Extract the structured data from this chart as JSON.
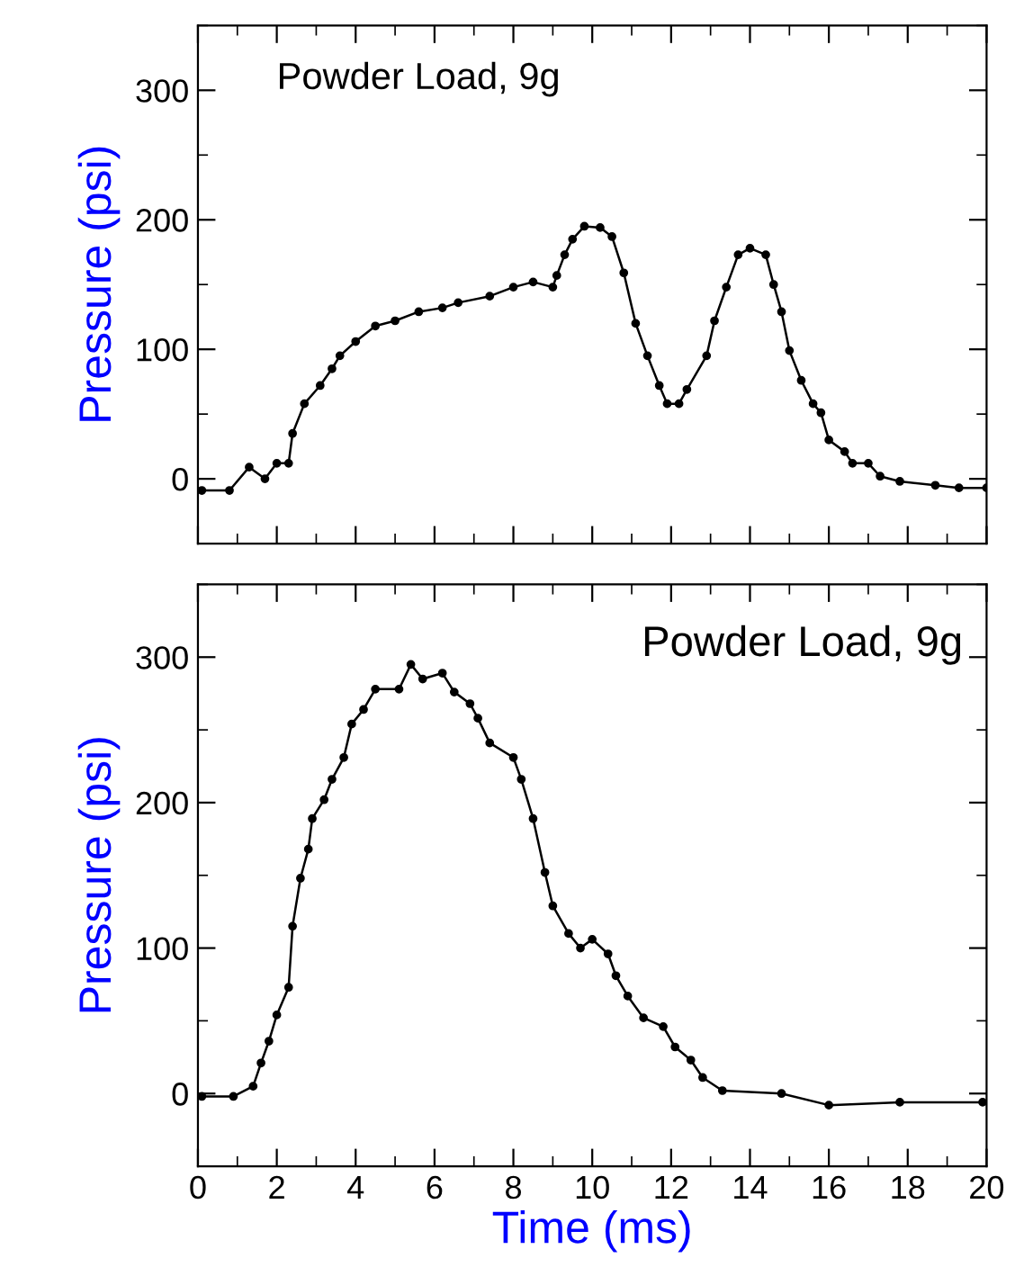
{
  "chart_data": [
    {
      "type": "line",
      "ylabel": "Pressure (psi)",
      "annotations": [
        "Powder Load, 9g"
      ],
      "xlim": [
        0,
        20
      ],
      "xticks": [
        0,
        2,
        4,
        6,
        8,
        10,
        12,
        14,
        16,
        18,
        20
      ],
      "ylim": [
        -50,
        350
      ],
      "yticks": [
        0,
        100,
        200,
        300
      ],
      "tick_labels": "y",
      "marker": "circle",
      "line_style": "solid",
      "x": [
        0.1,
        0.8,
        1.3,
        1.7,
        2.0,
        2.3,
        2.4,
        2.7,
        3.1,
        3.4,
        3.6,
        4.0,
        4.5,
        5.0,
        5.6,
        6.2,
        6.6,
        7.4,
        8.0,
        8.5,
        9.0,
        9.1,
        9.3,
        9.5,
        9.8,
        10.2,
        10.5,
        10.8,
        11.1,
        11.4,
        11.7,
        11.9,
        12.2,
        12.4,
        12.9,
        13.1,
        13.4,
        13.7,
        14.0,
        14.4,
        14.6,
        14.8,
        15.0,
        15.3,
        15.6,
        15.8,
        16.0,
        16.4,
        16.6,
        17.0,
        17.3,
        17.8,
        18.7,
        19.3,
        20.0
      ],
      "series": [
        {
          "color": "#000000",
          "values": [
            -9,
            -9,
            9,
            0,
            12,
            12,
            35,
            58,
            72,
            85,
            95,
            106,
            118,
            122,
            129,
            132,
            136,
            141,
            148,
            152,
            148,
            157,
            173,
            185,
            195,
            194,
            187,
            159,
            120,
            95,
            72,
            58,
            58,
            69,
            95,
            122,
            148,
            173,
            178,
            173,
            150,
            129,
            99,
            76,
            58,
            51,
            30,
            21,
            12,
            12,
            2,
            -2,
            -5,
            -7,
            -7
          ]
        }
      ]
    },
    {
      "type": "line",
      "xlabel": "Time (ms)",
      "ylabel": "Pressure (psi)",
      "annotations": [
        "Powder Load, 9g"
      ],
      "xlim": [
        0,
        20
      ],
      "xticks": [
        0,
        2,
        4,
        6,
        8,
        10,
        12,
        14,
        16,
        18,
        20
      ],
      "ylim": [
        -50,
        350
      ],
      "yticks": [
        0,
        100,
        200,
        300
      ],
      "marker": "circle",
      "line_style": "solid",
      "x": [
        0.1,
        0.9,
        1.4,
        1.6,
        1.8,
        2.0,
        2.3,
        2.4,
        2.6,
        2.8,
        2.9,
        3.2,
        3.4,
        3.7,
        3.9,
        4.2,
        4.5,
        5.1,
        5.4,
        5.7,
        6.2,
        6.5,
        6.9,
        7.1,
        7.4,
        8.0,
        8.2,
        8.5,
        8.8,
        9.0,
        9.4,
        9.7,
        10.0,
        10.4,
        10.6,
        10.9,
        11.3,
        11.8,
        12.1,
        12.5,
        12.8,
        13.3,
        14.8,
        16.0,
        17.8,
        19.9
      ],
      "series": [
        {
          "color": "#000000",
          "values": [
            -2,
            -2,
            5,
            21,
            36,
            54,
            73,
            115,
            148,
            168,
            189,
            202,
            216,
            231,
            254,
            264,
            278,
            278,
            295,
            285,
            289,
            276,
            268,
            258,
            241,
            231,
            216,
            189,
            152,
            129,
            110,
            100,
            106,
            96,
            81,
            67,
            52,
            46,
            32,
            23,
            11,
            2,
            0,
            -8,
            -6,
            -6
          ]
        }
      ]
    }
  ]
}
